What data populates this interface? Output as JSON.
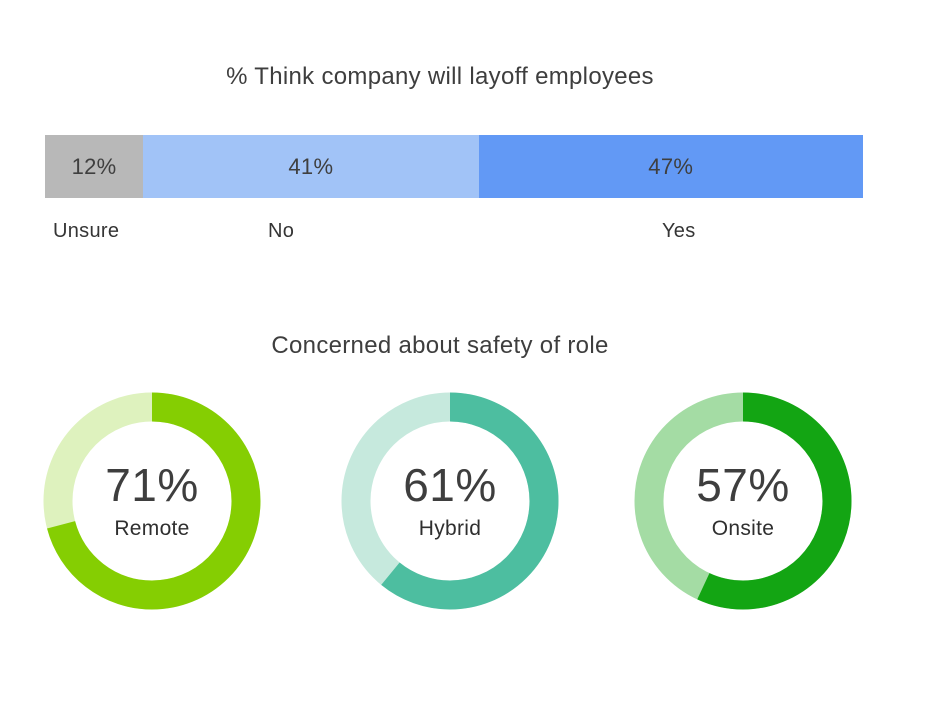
{
  "page": {
    "background_color": "#ffffff",
    "text_color": "#3e3e3e"
  },
  "chart_data": [
    {
      "type": "bar",
      "variant": "horizontal-stacked-100pct",
      "title": "% Think company will layoff employees",
      "categories": [
        "Unsure",
        "No",
        "Yes"
      ],
      "values": [
        12,
        41,
        47
      ],
      "value_labels": [
        "12%",
        "41%",
        "47%"
      ],
      "colors": [
        "#B8B8B8",
        "#A1C3F7",
        "#6299F5"
      ],
      "legend_position": "below-bar",
      "grid": false
    },
    {
      "type": "pie",
      "variant": "donut",
      "title": "Concerned about safety of role",
      "series": [
        {
          "name": "Remote",
          "value": 71,
          "value_label": "71%",
          "color": "#85CE02",
          "remainder_color": "#DEF2BE"
        },
        {
          "name": "Hybrid",
          "value": 61,
          "value_label": "61%",
          "color": "#4DBEA0",
          "remainder_color": "#C6E9DD"
        },
        {
          "name": "Onsite",
          "value": 57,
          "value_label": "57%",
          "color": "#13A513",
          "remainder_color": "#A4DCA4"
        }
      ],
      "start_angle_deg": 0,
      "direction": "clockwise",
      "legend_position": "inside-center"
    }
  ]
}
